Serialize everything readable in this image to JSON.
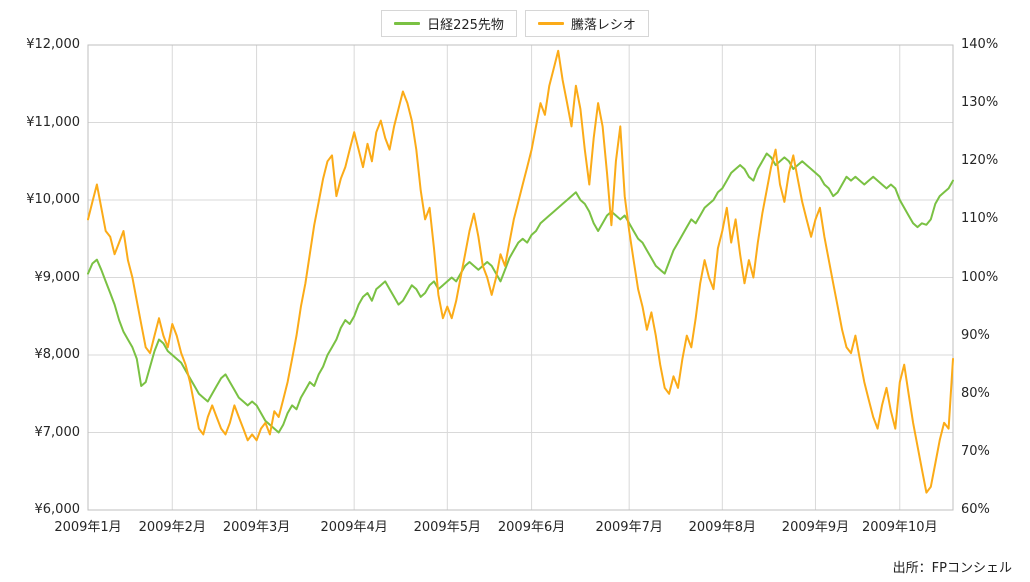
{
  "source_note": "出所：FPコンシェル",
  "chart_data": {
    "type": "line",
    "title": "",
    "legend_position": "top",
    "grid": true,
    "colors": {
      "nikkei_green": "#7ac143",
      "ratio_orange": "#fbab18",
      "gridline": "#d9d9d9",
      "plot_border": "#bfbfbf"
    },
    "left_axis": {
      "min": 6000,
      "max": 12000,
      "step": 1000,
      "labels": [
        "¥12,000",
        "¥11,000",
        "¥10,000",
        "¥9,000",
        "¥8,000",
        "¥7,000",
        "¥6,000"
      ]
    },
    "right_axis": {
      "min": 60,
      "max": 140,
      "step": 10,
      "labels": [
        "140%",
        "130%",
        "120%",
        "110%",
        "100%",
        "90%",
        "80%",
        "70%",
        "60%"
      ]
    },
    "x_axis": {
      "labels": [
        "2009年1月",
        "2009年2月",
        "2009年3月",
        "2009年4月",
        "2009年5月",
        "2009年6月",
        "2009年7月",
        "2009年8月",
        "2009年9月",
        "2009年10月"
      ],
      "month_days": [
        19,
        19,
        22,
        21,
        19,
        22,
        21,
        21,
        19,
        13
      ]
    },
    "series": [
      {
        "name": "日経225先物",
        "axis": "left",
        "color": "#7ac143",
        "values": [
          9050,
          9180,
          9230,
          9100,
          8950,
          8800,
          8650,
          8450,
          8300,
          8200,
          8100,
          7950,
          7600,
          7650,
          7850,
          8050,
          8200,
          8150,
          8050,
          8000,
          7950,
          7900,
          7800,
          7700,
          7600,
          7500,
          7450,
          7400,
          7500,
          7600,
          7700,
          7750,
          7650,
          7550,
          7450,
          7400,
          7350,
          7400,
          7350,
          7250,
          7150,
          7100,
          7050,
          7000,
          7100,
          7250,
          7350,
          7300,
          7450,
          7550,
          7650,
          7600,
          7750,
          7850,
          8000,
          8100,
          8200,
          8350,
          8450,
          8400,
          8500,
          8650,
          8750,
          8800,
          8700,
          8850,
          8900,
          8950,
          8850,
          8750,
          8650,
          8700,
          8800,
          8900,
          8850,
          8750,
          8800,
          8900,
          8950,
          8850,
          8900,
          8950,
          9000,
          8950,
          9050,
          9150,
          9200,
          9150,
          9100,
          9150,
          9200,
          9150,
          9050,
          8950,
          9100,
          9250,
          9350,
          9450,
          9500,
          9450,
          9550,
          9600,
          9700,
          9750,
          9800,
          9850,
          9900,
          9950,
          10000,
          10050,
          10100,
          10000,
          9950,
          9850,
          9700,
          9600,
          9700,
          9800,
          9850,
          9800,
          9750,
          9800,
          9700,
          9600,
          9500,
          9450,
          9350,
          9250,
          9150,
          9100,
          9050,
          9200,
          9350,
          9450,
          9550,
          9650,
          9750,
          9700,
          9800,
          9900,
          9950,
          10000,
          10100,
          10150,
          10250,
          10350,
          10400,
          10450,
          10400,
          10300,
          10250,
          10400,
          10500,
          10600,
          10550,
          10450,
          10500,
          10550,
          10500,
          10400,
          10450,
          10500,
          10450,
          10400,
          10350,
          10300,
          10200,
          10150,
          10050,
          10100,
          10200,
          10300,
          10250,
          10300,
          10250,
          10200,
          10250,
          10300,
          10250,
          10200,
          10150,
          10200,
          10150,
          10000,
          9900,
          9800,
          9700,
          9650,
          9700,
          9680,
          9750,
          9950,
          10050,
          10100,
          10150,
          10250
        ]
      },
      {
        "name": "騰落レシオ",
        "axis": "right",
        "color": "#fbab18",
        "values": [
          110,
          113,
          116,
          112,
          108,
          107,
          104,
          106,
          108,
          103,
          100,
          96,
          92,
          88,
          87,
          90,
          93,
          90,
          88,
          92,
          90,
          87,
          85,
          82,
          78,
          74,
          73,
          76,
          78,
          76,
          74,
          73,
          75,
          78,
          76,
          74,
          72,
          73,
          72,
          74,
          75,
          73,
          77,
          76,
          79,
          82,
          86,
          90,
          95,
          99,
          104,
          109,
          113,
          117,
          120,
          121,
          114,
          117,
          119,
          122,
          125,
          122,
          119,
          123,
          120,
          125,
          127,
          124,
          122,
          126,
          129,
          132,
          130,
          127,
          122,
          115,
          110,
          112,
          105,
          97,
          93,
          95,
          93,
          96,
          100,
          104,
          108,
          111,
          107,
          102,
          100,
          97,
          100,
          104,
          102,
          106,
          110,
          113,
          116,
          119,
          122,
          126,
          130,
          128,
          133,
          136,
          139,
          134,
          130,
          126,
          133,
          129,
          122,
          116,
          124,
          130,
          126,
          118,
          109,
          120,
          126,
          114,
          108,
          103,
          98,
          95,
          91,
          94,
          90,
          85,
          81,
          80,
          83,
          81,
          86,
          90,
          88,
          93,
          99,
          103,
          100,
          98,
          105,
          108,
          112,
          106,
          110,
          104,
          99,
          103,
          100,
          106,
          111,
          115,
          119,
          122,
          116,
          113,
          118,
          121,
          117,
          113,
          110,
          107,
          110,
          112,
          107,
          103,
          99,
          95,
          91,
          88,
          87,
          90,
          86,
          82,
          79,
          76,
          74,
          78,
          81,
          77,
          74,
          82,
          85,
          80,
          75,
          71,
          67,
          63,
          64,
          68,
          72,
          75,
          74,
          86
        ]
      }
    ]
  }
}
